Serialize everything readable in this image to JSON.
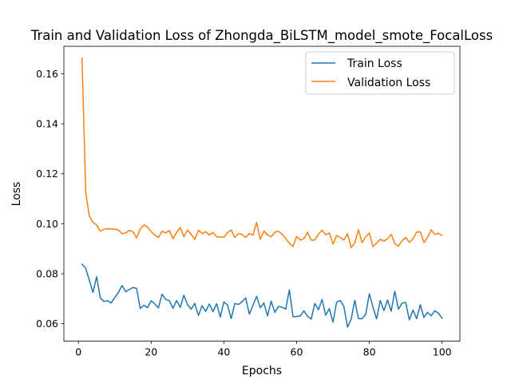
{
  "chart_data": {
    "type": "line",
    "title": "Train and Validation Loss of Zhongda_BiLSTM_model_smote_FocalLoss",
    "xlabel": "Epochs",
    "ylabel": "Loss",
    "xlim": [
      -4,
      104.9
    ],
    "ylim": [
      0.053,
      0.171
    ],
    "xticks": [
      0,
      20,
      40,
      60,
      80,
      100
    ],
    "yticks": [
      0.06,
      0.08,
      0.1,
      0.12,
      0.14,
      0.16
    ],
    "ytick_labels": [
      "0.06",
      "0.08",
      "0.10",
      "0.12",
      "0.14",
      "0.16"
    ],
    "grid": false,
    "legend_position": "top-right",
    "x": [
      1,
      2,
      3,
      4,
      5,
      6,
      7,
      8,
      9,
      10,
      11,
      12,
      13,
      14,
      15,
      16,
      17,
      18,
      19,
      20,
      21,
      22,
      23,
      24,
      25,
      26,
      27,
      28,
      29,
      30,
      31,
      32,
      33,
      34,
      35,
      36,
      37,
      38,
      39,
      40,
      41,
      42,
      43,
      44,
      45,
      46,
      47,
      48,
      49,
      50,
      51,
      52,
      53,
      54,
      55,
      56,
      57,
      58,
      59,
      60,
      61,
      62,
      63,
      64,
      65,
      66,
      67,
      68,
      69,
      70,
      71,
      72,
      73,
      74,
      75,
      76,
      77,
      78,
      79,
      80,
      81,
      82,
      83,
      84,
      85,
      86,
      87,
      88,
      89,
      90,
      91,
      92,
      93,
      94,
      95,
      96,
      97,
      98,
      99,
      100
    ],
    "series": [
      {
        "name": "Train Loss",
        "color": "#1f77b4",
        "values": [
          0.0838,
          0.0822,
          0.0774,
          0.0725,
          0.0788,
          0.0704,
          0.0689,
          0.0692,
          0.0683,
          0.0705,
          0.0725,
          0.0753,
          0.0728,
          0.0737,
          0.0745,
          0.0741,
          0.0661,
          0.0674,
          0.0664,
          0.0692,
          0.0679,
          0.0663,
          0.0718,
          0.0697,
          0.0692,
          0.0662,
          0.0693,
          0.0665,
          0.0714,
          0.0676,
          0.0658,
          0.0681,
          0.0633,
          0.0672,
          0.0649,
          0.0679,
          0.0648,
          0.068,
          0.0627,
          0.0687,
          0.0675,
          0.062,
          0.0681,
          0.0677,
          0.0688,
          0.0703,
          0.0638,
          0.0674,
          0.071,
          0.0664,
          0.0683,
          0.0631,
          0.069,
          0.0645,
          0.0669,
          0.0666,
          0.0658,
          0.0736,
          0.0628,
          0.0629,
          0.0631,
          0.0651,
          0.063,
          0.0618,
          0.0681,
          0.0656,
          0.0697,
          0.0634,
          0.066,
          0.0606,
          0.0686,
          0.0693,
          0.0669,
          0.0586,
          0.0618,
          0.0694,
          0.062,
          0.062,
          0.0637,
          0.072,
          0.0666,
          0.0619,
          0.0693,
          0.0652,
          0.0695,
          0.065,
          0.073,
          0.0658,
          0.0682,
          0.0685,
          0.0615,
          0.0655,
          0.062,
          0.0676,
          0.0625,
          0.0645,
          0.0632,
          0.0652,
          0.0642,
          0.0622
        ]
      },
      {
        "name": "Validation Loss",
        "color": "#ff7f0e",
        "values": [
          0.1663,
          0.1126,
          0.103,
          0.1005,
          0.0995,
          0.097,
          0.0978,
          0.098,
          0.0979,
          0.0978,
          0.0975,
          0.096,
          0.0963,
          0.0974,
          0.0968,
          0.0943,
          0.0979,
          0.0995,
          0.0986,
          0.0968,
          0.0955,
          0.0945,
          0.097,
          0.0963,
          0.0973,
          0.094,
          0.0965,
          0.0985,
          0.0948,
          0.0975,
          0.0958,
          0.0937,
          0.0974,
          0.0961,
          0.0968,
          0.0955,
          0.0965,
          0.0948,
          0.0947,
          0.0946,
          0.0965,
          0.0975,
          0.0945,
          0.0961,
          0.0957,
          0.0945,
          0.0961,
          0.0955,
          0.1005,
          0.0937,
          0.0971,
          0.0955,
          0.0948,
          0.0966,
          0.097,
          0.0958,
          0.0941,
          0.0922,
          0.0909,
          0.0949,
          0.0935,
          0.094,
          0.0966,
          0.0935,
          0.0935,
          0.0958,
          0.0974,
          0.0956,
          0.0963,
          0.0918,
          0.0953,
          0.0945,
          0.0935,
          0.096,
          0.0904,
          0.0923,
          0.0976,
          0.0924,
          0.0948,
          0.0963,
          0.0909,
          0.0922,
          0.0938,
          0.093,
          0.094,
          0.0958,
          0.092,
          0.091,
          0.0933,
          0.0945,
          0.0925,
          0.094,
          0.0966,
          0.0968,
          0.0925,
          0.0945,
          0.0976,
          0.0957,
          0.0962,
          0.0953
        ]
      }
    ]
  }
}
